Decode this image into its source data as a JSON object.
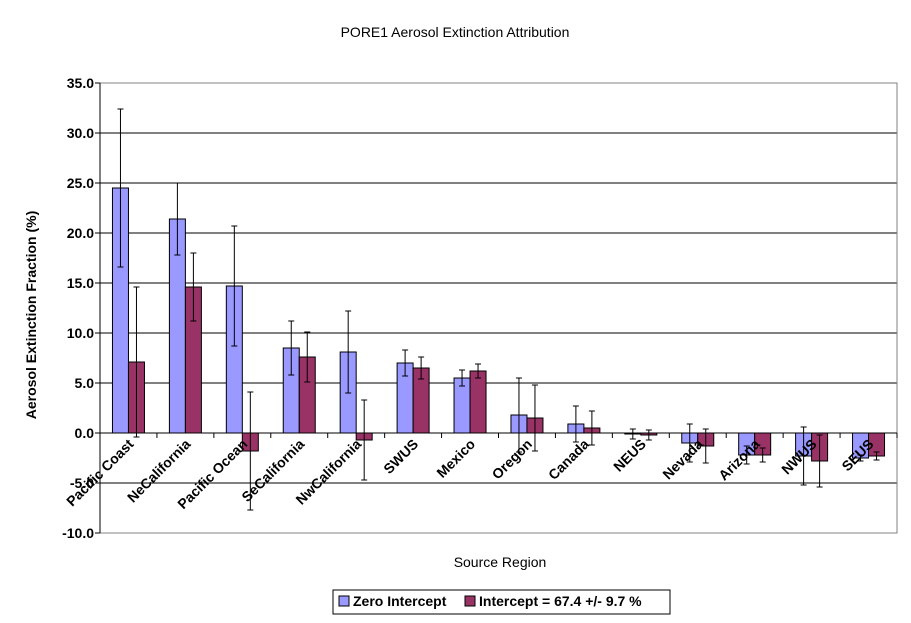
{
  "chart_data": {
    "type": "bar",
    "title": "PORE1 Aerosol Extinction Attribution",
    "xlabel": "Source Region",
    "ylabel": "Aerosol Extinction Fraction (%)",
    "ylim": [
      -10,
      35
    ],
    "yticks": [
      "35.0",
      "30.0",
      "25.0",
      "20.0",
      "15.0",
      "10.0",
      "5.0",
      "0.0",
      "-5.0",
      "-10.0"
    ],
    "ytick_values": [
      35,
      30,
      25,
      20,
      15,
      10,
      5,
      0,
      -5,
      -10
    ],
    "grid": true,
    "legend_position": "bottom-center",
    "categories": [
      "Pacific Coast",
      "NeCalifornia",
      "Pacific Ocean",
      "SeCalifornia",
      "NwCalifornia",
      "SWUS",
      "Mexico",
      "Oregon",
      "Canada",
      "NEUS",
      "Nevada",
      "Arizona",
      "NWUS",
      "SEUS"
    ],
    "series": [
      {
        "name": "Zero Intercept",
        "color": "#9999ff",
        "values": [
          24.5,
          21.4,
          14.7,
          8.5,
          8.1,
          7.0,
          5.5,
          1.8,
          0.9,
          -0.1,
          -1.0,
          -2.2,
          -2.3,
          -2.5
        ],
        "errors": [
          7.9,
          3.6,
          6.0,
          2.7,
          4.1,
          1.3,
          0.8,
          3.7,
          1.8,
          0.5,
          1.9,
          0.9,
          2.9,
          0.3
        ]
      },
      {
        "name": "Intercept = 67.4 +/- 9.7 %",
        "color": "#993366",
        "values": [
          7.1,
          14.6,
          -1.8,
          7.6,
          -0.7,
          6.5,
          6.2,
          1.5,
          0.5,
          -0.2,
          -1.3,
          -2.2,
          -2.8,
          -2.3
        ],
        "errors": [
          7.5,
          3.4,
          5.9,
          2.5,
          4.0,
          1.1,
          0.7,
          3.3,
          1.7,
          0.5,
          1.7,
          0.7,
          2.6,
          0.4
        ]
      }
    ]
  }
}
